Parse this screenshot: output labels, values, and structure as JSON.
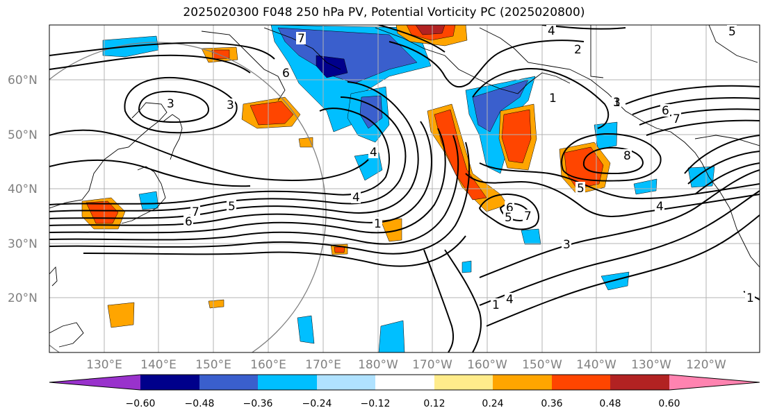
{
  "title": "2025020300 F048 250 hPa PV, Potential Vorticity PC (2025020800)",
  "map": {
    "lat_labels": [
      "60°N",
      "50°N",
      "40°N",
      "30°N",
      "20°N"
    ],
    "lon_labels": [
      "130°E",
      "140°E",
      "150°E",
      "160°E",
      "170°E",
      "180°W",
      "170°W",
      "160°W",
      "150°W",
      "140°W",
      "130°W",
      "120°W"
    ],
    "contour_labels": [
      "4",
      "2",
      "1",
      "1",
      "3",
      "6",
      "7",
      "8",
      "5",
      "4",
      "3",
      "1",
      "4",
      "6",
      "7",
      "5",
      "3",
      "6",
      "7",
      "5",
      "4",
      "1",
      "6",
      "7",
      "5",
      "3",
      "1",
      "4"
    ]
  },
  "colorbar": {
    "ticks": [
      "−0.60",
      "−0.48",
      "−0.36",
      "−0.24",
      "−0.12",
      "0.12",
      "0.24",
      "0.36",
      "0.48",
      "0.60"
    ],
    "colors": [
      "#9932cc",
      "#00008b",
      "#3a5fcd",
      "#00bfff",
      "#b0e2ff",
      "#ffffff",
      "#ffec8b",
      "#ffa500",
      "#ff4500",
      "#b22222",
      "#ff83b0"
    ]
  },
  "legend_colors": {
    "neg_light": "#b0e2ff",
    "neg_mid": "#00bfff",
    "neg_strong": "#3a5fcd",
    "neg_max": "#00008b",
    "pos_light": "#ffec8b",
    "pos_mid": "#ffa500",
    "pos_strong": "#ff4500",
    "pos_max": "#b22222"
  }
}
